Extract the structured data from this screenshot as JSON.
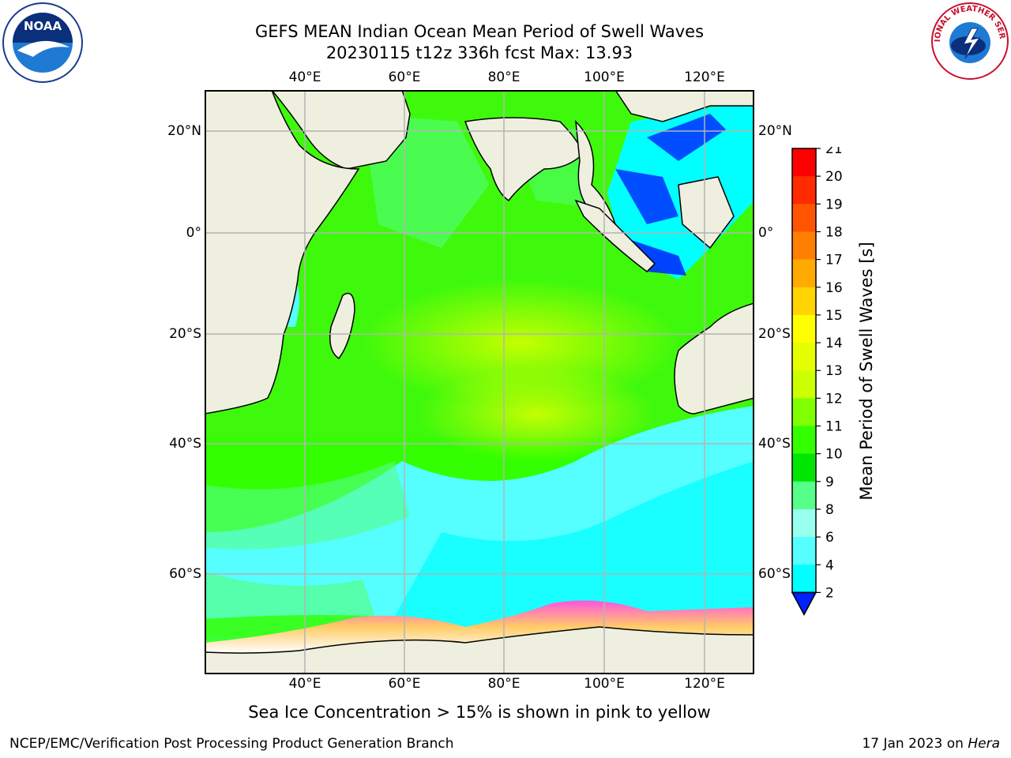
{
  "title": {
    "line1": "GEFS MEAN Indian Ocean Mean Period of Swell Waves",
    "line2": "20230115 t12z 336h fcst   Max: 13.93"
  },
  "axes": {
    "lon_ticks": [
      "40°E",
      "60°E",
      "80°E",
      "100°E",
      "120°E"
    ],
    "lat_ticks": [
      "20°N",
      "0°",
      "20°S",
      "40°S",
      "60°S"
    ]
  },
  "colorbar": {
    "label": "Mean Period of Swell Waves [s]",
    "ticks": [
      "21",
      "20",
      "19",
      "18",
      "17",
      "16",
      "15",
      "14",
      "13",
      "12",
      "11",
      "10",
      "9",
      "8",
      "6",
      "4",
      "2"
    ],
    "colors": [
      "#ff0000",
      "#ff2a00",
      "#ff5500",
      "#ff8000",
      "#ffaa00",
      "#ffd400",
      "#ffff00",
      "#e6ff00",
      "#ccff00",
      "#80ff00",
      "#33ff00",
      "#00e600",
      "#55ff88",
      "#99ffee",
      "#55ffff",
      "#00ffff",
      "#00aaff",
      "#0022ff"
    ]
  },
  "footnote": "Sea Ice Concentration > 15% is shown in pink to yellow",
  "credit": "NCEP/EMC/Verification Post Processing Product Generation Branch",
  "date": {
    "text": "17 Jan 2023 on",
    "machine": "Hera"
  },
  "logos": {
    "noaa": {
      "text": "NOAA"
    },
    "nws": {
      "text": "NATIONAL WEATHER SERVICE"
    }
  }
}
